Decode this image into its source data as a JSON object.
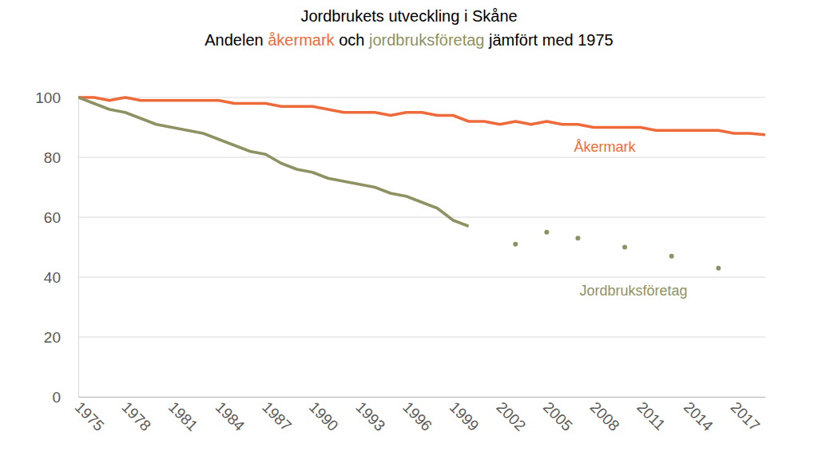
{
  "chart_data": {
    "type": "line",
    "title": "Jordbrukets utveckling i Skåne",
    "subtitle": "Andelen åkermark och jordbruksföretag jämfört med 1975",
    "x": [
      1975,
      1976,
      1977,
      1978,
      1979,
      1980,
      1981,
      1982,
      1983,
      1984,
      1985,
      1986,
      1987,
      1988,
      1989,
      1990,
      1991,
      1992,
      1993,
      1994,
      1995,
      1996,
      1997,
      1998,
      1999,
      2000,
      2001,
      2002,
      2003,
      2004,
      2005,
      2006,
      2007,
      2008,
      2009,
      2010,
      2011,
      2012,
      2013,
      2014,
      2015,
      2016,
      2017,
      2018,
      2019
    ],
    "series": [
      {
        "name": "Åkermark",
        "color": "#EE6A3A",
        "values": [
          100,
          100,
          99,
          100,
          99,
          99,
          99,
          99,
          99,
          99,
          98,
          98,
          98,
          97,
          97,
          97,
          96,
          95,
          95,
          95,
          94,
          95,
          95,
          94,
          94,
          92,
          92,
          91,
          92,
          91,
          92,
          91,
          91,
          90,
          90,
          90,
          90,
          89,
          89,
          89,
          89,
          89,
          88,
          88,
          87.5
        ]
      },
      {
        "name": "Jordbruksföretag",
        "color": "#8E9162",
        "values": [
          100,
          98,
          96,
          95,
          93,
          91,
          90,
          89,
          88,
          86,
          84,
          82,
          81,
          78,
          76,
          75,
          73,
          72,
          71,
          70,
          68,
          67,
          65,
          63,
          59,
          57,
          null,
          null,
          51,
          null,
          55,
          null,
          53,
          null,
          null,
          50,
          null,
          null,
          47,
          null,
          null,
          43,
          null,
          null,
          null
        ]
      }
    ],
    "xlim": [
      1975,
      2019
    ],
    "xticks": [
      1975,
      1978,
      1981,
      1984,
      1987,
      1990,
      1993,
      1996,
      1999,
      2002,
      2005,
      2008,
      2011,
      2014,
      2017
    ],
    "ylim": [
      0,
      100
    ],
    "yticks": [
      0,
      20,
      40,
      60,
      80,
      100
    ],
    "grid": true
  }
}
